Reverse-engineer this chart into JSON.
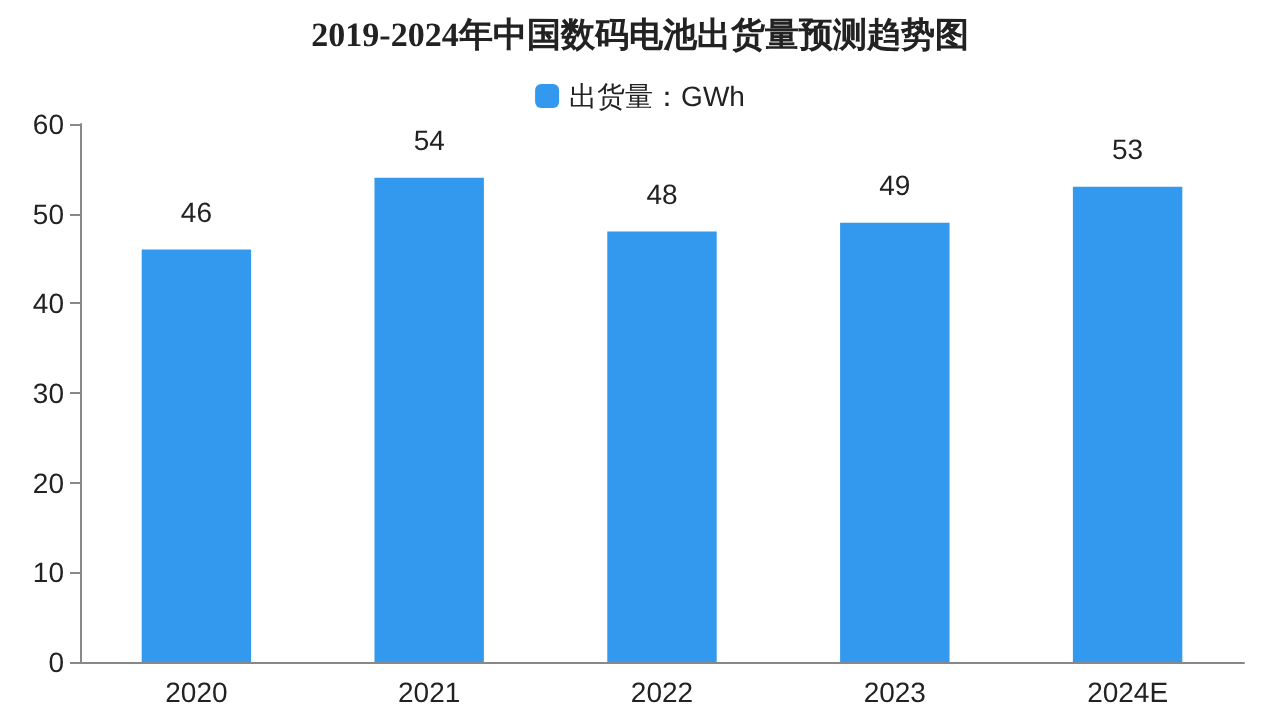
{
  "chart_data": {
    "type": "bar",
    "title": "2019-2024年中国数码电池出货量预测趋势图",
    "categories": [
      "2020",
      "2021",
      "2022",
      "2023",
      "2024E"
    ],
    "series": [
      {
        "name": "出货量：GWh",
        "color": "#3399ee",
        "values": [
          46,
          54,
          48,
          49,
          53
        ]
      }
    ],
    "ylim": [
      0,
      60
    ],
    "yticks": [
      0,
      10,
      20,
      30,
      40,
      50,
      60
    ],
    "grid": false,
    "legend": "top",
    "data_labels": true
  }
}
